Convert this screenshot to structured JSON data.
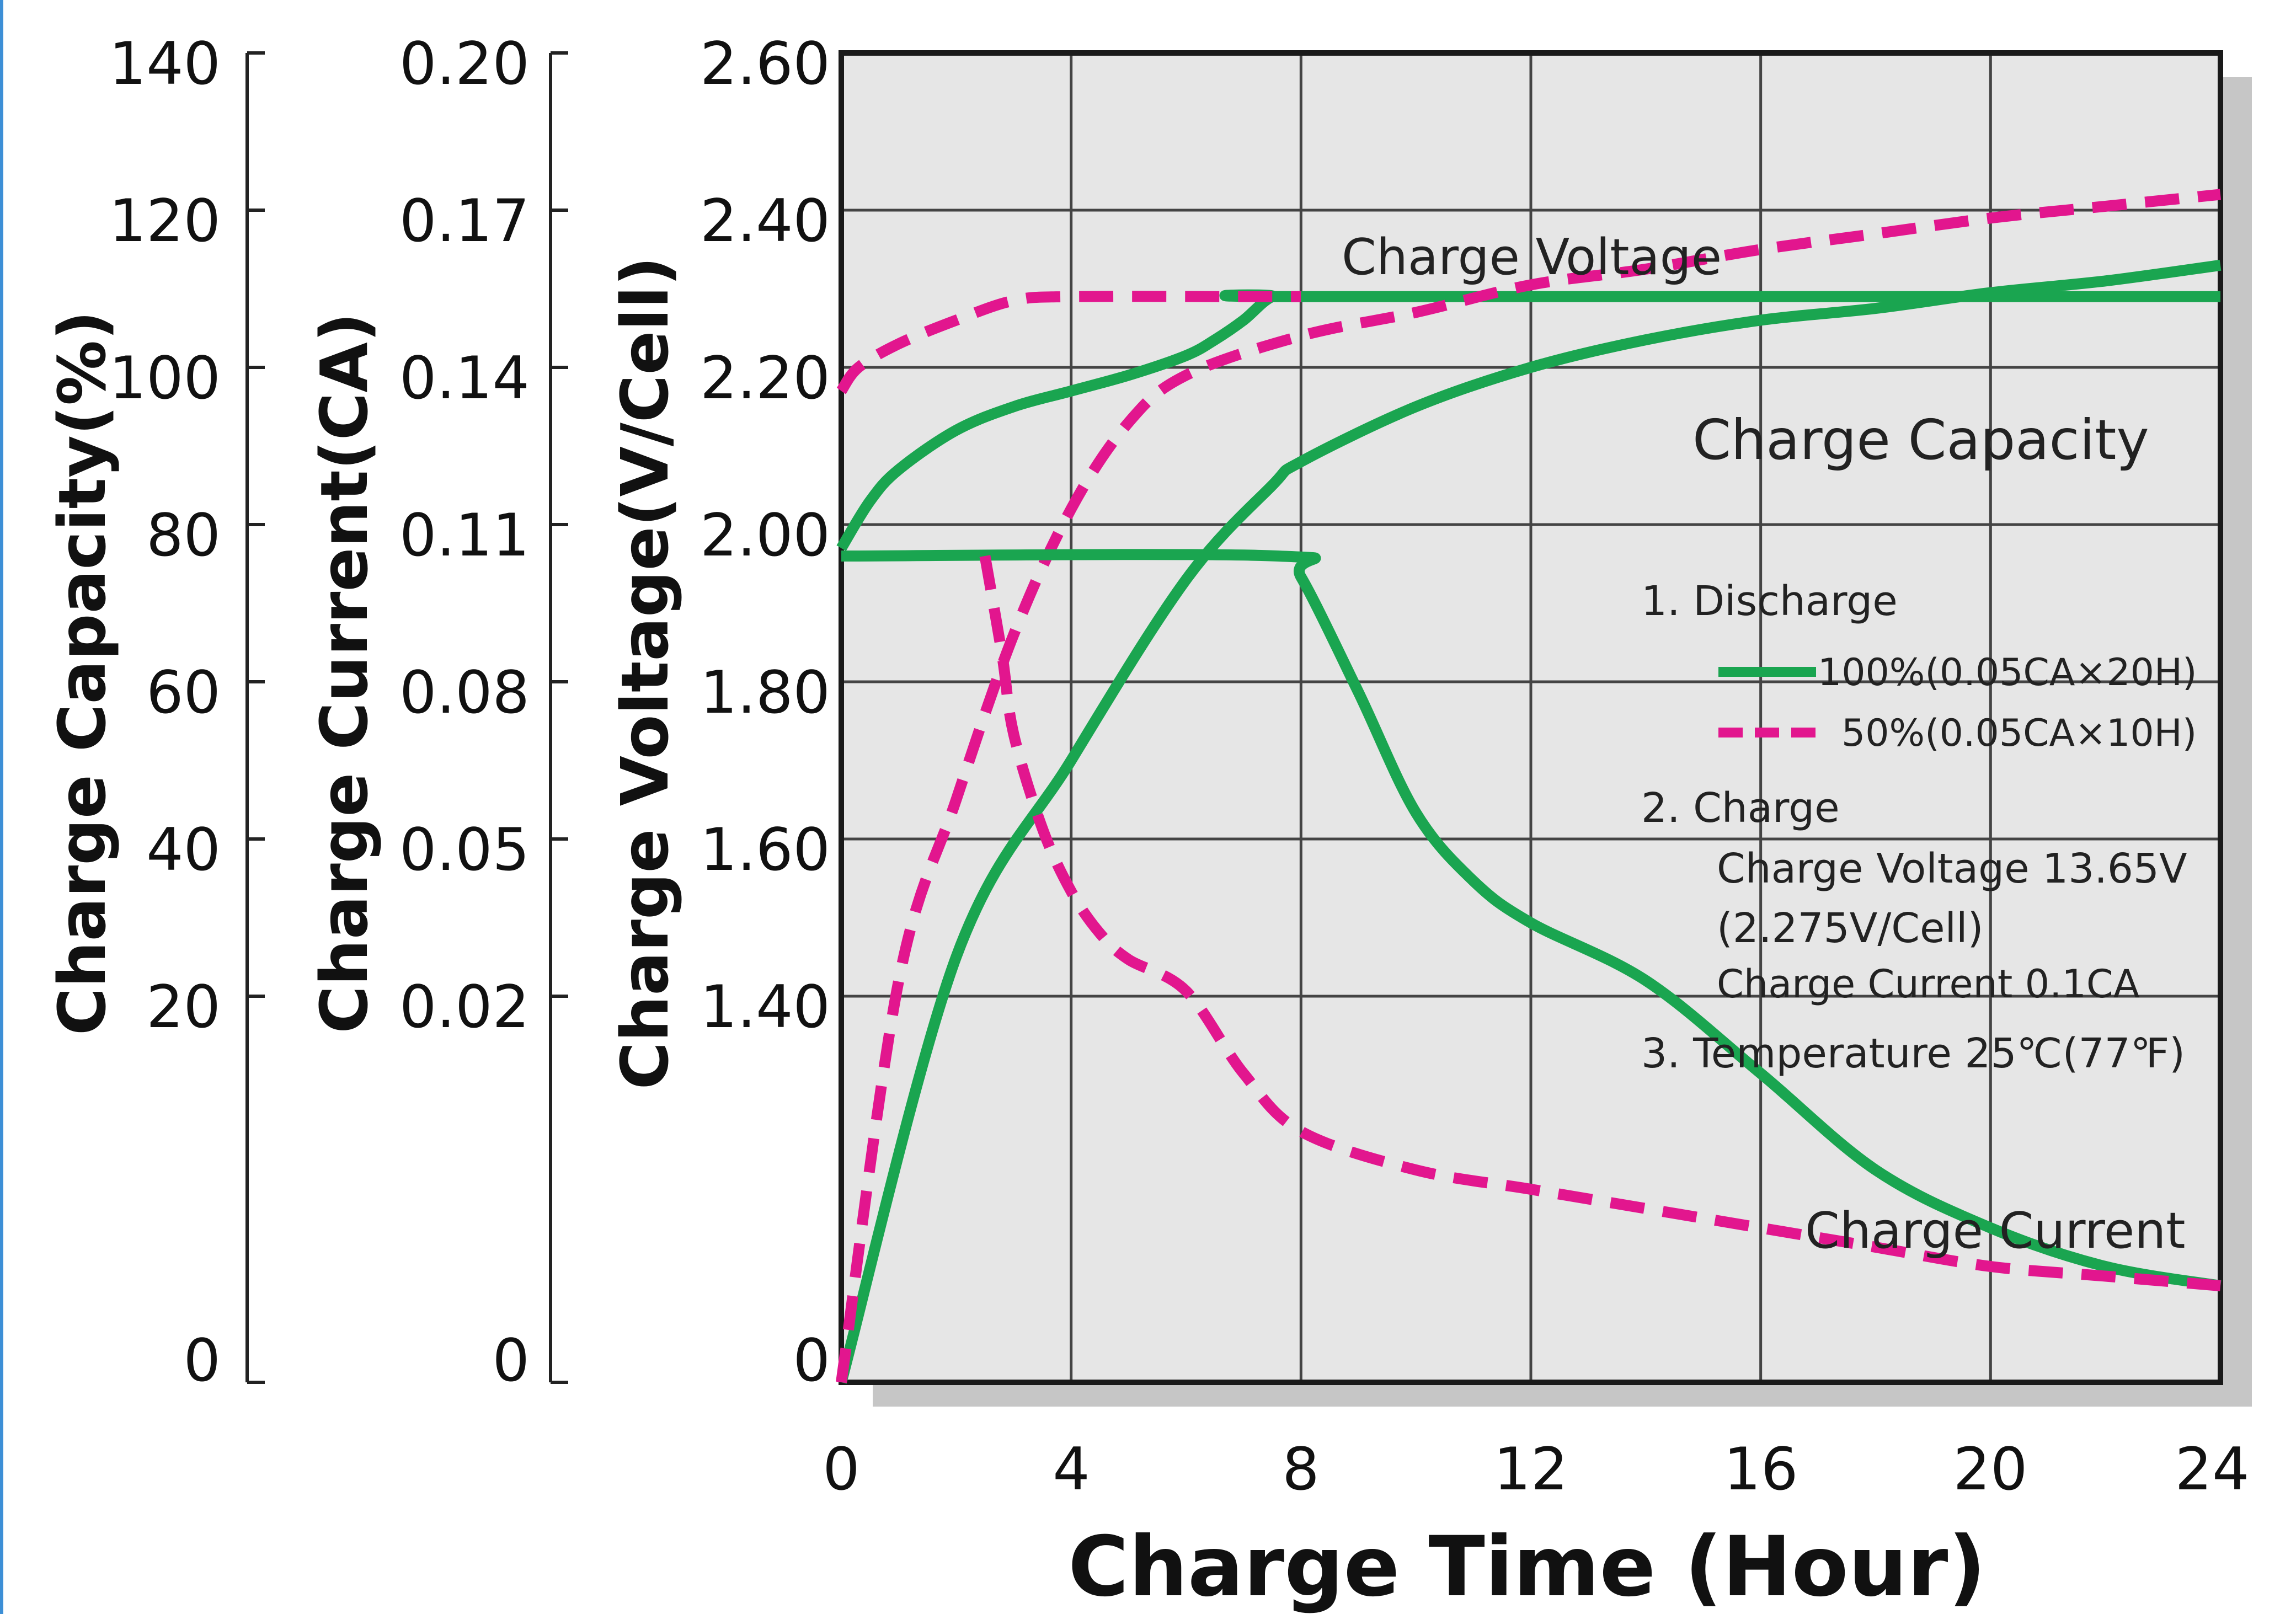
{
  "chart_data": {
    "type": "line",
    "xlabel": "Charge Time (Hour)",
    "x_ticks": [
      "0",
      "4",
      "8",
      "12",
      "16",
      "20",
      "24"
    ],
    "xlim": [
      0,
      24
    ],
    "axes": {
      "capacity": {
        "label": "Charge Capacity(%)",
        "ticks": [
          "140",
          "120",
          "100",
          "80",
          "60",
          "40",
          "20",
          "0"
        ],
        "values": [
          140,
          120,
          100,
          80,
          60,
          40,
          20,
          0
        ]
      },
      "current": {
        "label": "Charge Current(CA)",
        "ticks": [
          "0.20",
          "0.17",
          "0.14",
          "0.11",
          "0.08",
          "0.05",
          "0.02",
          "0"
        ],
        "values": [
          0.2,
          0.17,
          0.14,
          0.11,
          0.08,
          0.05,
          0.02,
          0
        ]
      },
      "voltage": {
        "label": "Charge Voltage(V/Cell)",
        "ticks": [
          "2.60",
          "2.40",
          "2.20",
          "2.00",
          "1.80",
          "1.60",
          "1.40",
          "0"
        ],
        "values": [
          2.6,
          2.4,
          2.2,
          2.0,
          1.8,
          1.6,
          1.4,
          0
        ]
      }
    },
    "annotations": {
      "voltage": "Charge Voltage",
      "capacity": "Charge Capacity",
      "current": "Charge Current"
    },
    "notes": {
      "n1": "1. Discharge",
      "n1a": "100%(0.05CA×20H)",
      "n1b": "50%(0.05CA×10H)",
      "n2": "2. Charge",
      "n2a": "Charge Voltage 13.65V",
      "n2b": "(2.275V/Cell)",
      "n2c": "Charge Current 0.1CA",
      "n3": "3. Temperature 25℃(77℉)"
    },
    "series": [
      {
        "quantity": "voltage",
        "discharge": "100%",
        "style": "solid",
        "color": "#1aa550",
        "points": [
          [
            0,
            1.97
          ],
          [
            0.5,
            2.03
          ],
          [
            1,
            2.07
          ],
          [
            2,
            2.12
          ],
          [
            3,
            2.15
          ],
          [
            4,
            2.17
          ],
          [
            5,
            2.19
          ],
          [
            6,
            2.215
          ],
          [
            6.5,
            2.235
          ],
          [
            7,
            2.26
          ],
          [
            7.5,
            2.29
          ],
          [
            8,
            2.29
          ],
          [
            24,
            2.29
          ]
        ]
      },
      {
        "quantity": "voltage",
        "discharge": "50%",
        "style": "dashed",
        "color": "#e2168e",
        "points": [
          [
            0,
            2.17
          ],
          [
            0.3,
            2.2
          ],
          [
            1,
            2.23
          ],
          [
            2,
            2.26
          ],
          [
            3,
            2.285
          ],
          [
            4,
            2.29
          ],
          [
            7,
            2.29
          ],
          [
            8,
            2.29
          ]
        ]
      },
      {
        "quantity": "capacity",
        "discharge": "100%",
        "style": "solid",
        "color": "#1aa550",
        "points": [
          [
            0,
            0
          ],
          [
            2,
            25
          ],
          [
            4,
            50
          ],
          [
            6,
            73
          ],
          [
            7.5,
            85
          ],
          [
            8,
            88
          ],
          [
            10,
            95
          ],
          [
            12,
            100
          ],
          [
            14,
            103.5
          ],
          [
            16,
            106
          ],
          [
            18,
            107.5
          ],
          [
            20,
            109.5
          ],
          [
            22,
            111
          ],
          [
            24,
            113
          ]
        ]
      },
      {
        "quantity": "capacity",
        "discharge": "50%",
        "style": "dashed",
        "color": "#e2168e",
        "points": [
          [
            0,
            0
          ],
          [
            1,
            22
          ],
          [
            2,
            45
          ],
          [
            3,
            66
          ],
          [
            4,
            82
          ],
          [
            5,
            93
          ],
          [
            6,
            99
          ],
          [
            8,
            104
          ],
          [
            10,
            107
          ],
          [
            12,
            110.5
          ],
          [
            14,
            112.5
          ],
          [
            16,
            115
          ],
          [
            18,
            117
          ],
          [
            20,
            119
          ],
          [
            22,
            120.5
          ],
          [
            24,
            122
          ]
        ]
      },
      {
        "quantity": "current",
        "discharge": "100%",
        "style": "solid",
        "color": "#1aa550",
        "points": [
          [
            0,
            0.104
          ],
          [
            7.6,
            0.104
          ],
          [
            8,
            0.1
          ],
          [
            9,
            0.078
          ],
          [
            10,
            0.055
          ],
          [
            11,
            0.042
          ],
          [
            12,
            0.034
          ],
          [
            14,
            0.023
          ],
          [
            16,
            0.016
          ],
          [
            18,
            0.011
          ],
          [
            20,
            0.008
          ],
          [
            22,
            0.006
          ],
          [
            24,
            0.005
          ]
        ]
      },
      {
        "quantity": "current",
        "discharge": "50%",
        "style": "dashed",
        "color": "#e2168e",
        "points": [
          [
            2.5,
            0.104
          ],
          [
            2.8,
            0.085
          ],
          [
            3,
            0.07
          ],
          [
            3.5,
            0.052
          ],
          [
            4,
            0.04
          ],
          [
            4.5,
            0.032
          ],
          [
            5,
            0.027
          ],
          [
            6,
            0.021
          ],
          [
            7,
            0.016
          ],
          [
            8,
            0.013
          ],
          [
            10,
            0.011
          ],
          [
            12,
            0.01
          ],
          [
            14,
            0.009
          ],
          [
            16,
            0.008
          ],
          [
            18,
            0.007
          ],
          [
            20,
            0.006
          ],
          [
            22,
            0.0055
          ],
          [
            24,
            0.005
          ]
        ]
      }
    ],
    "colors": {
      "solid": "#1aa550",
      "dashed": "#e2168e",
      "plot_bg": "#e6e6e6",
      "grid": "#444444"
    }
  }
}
